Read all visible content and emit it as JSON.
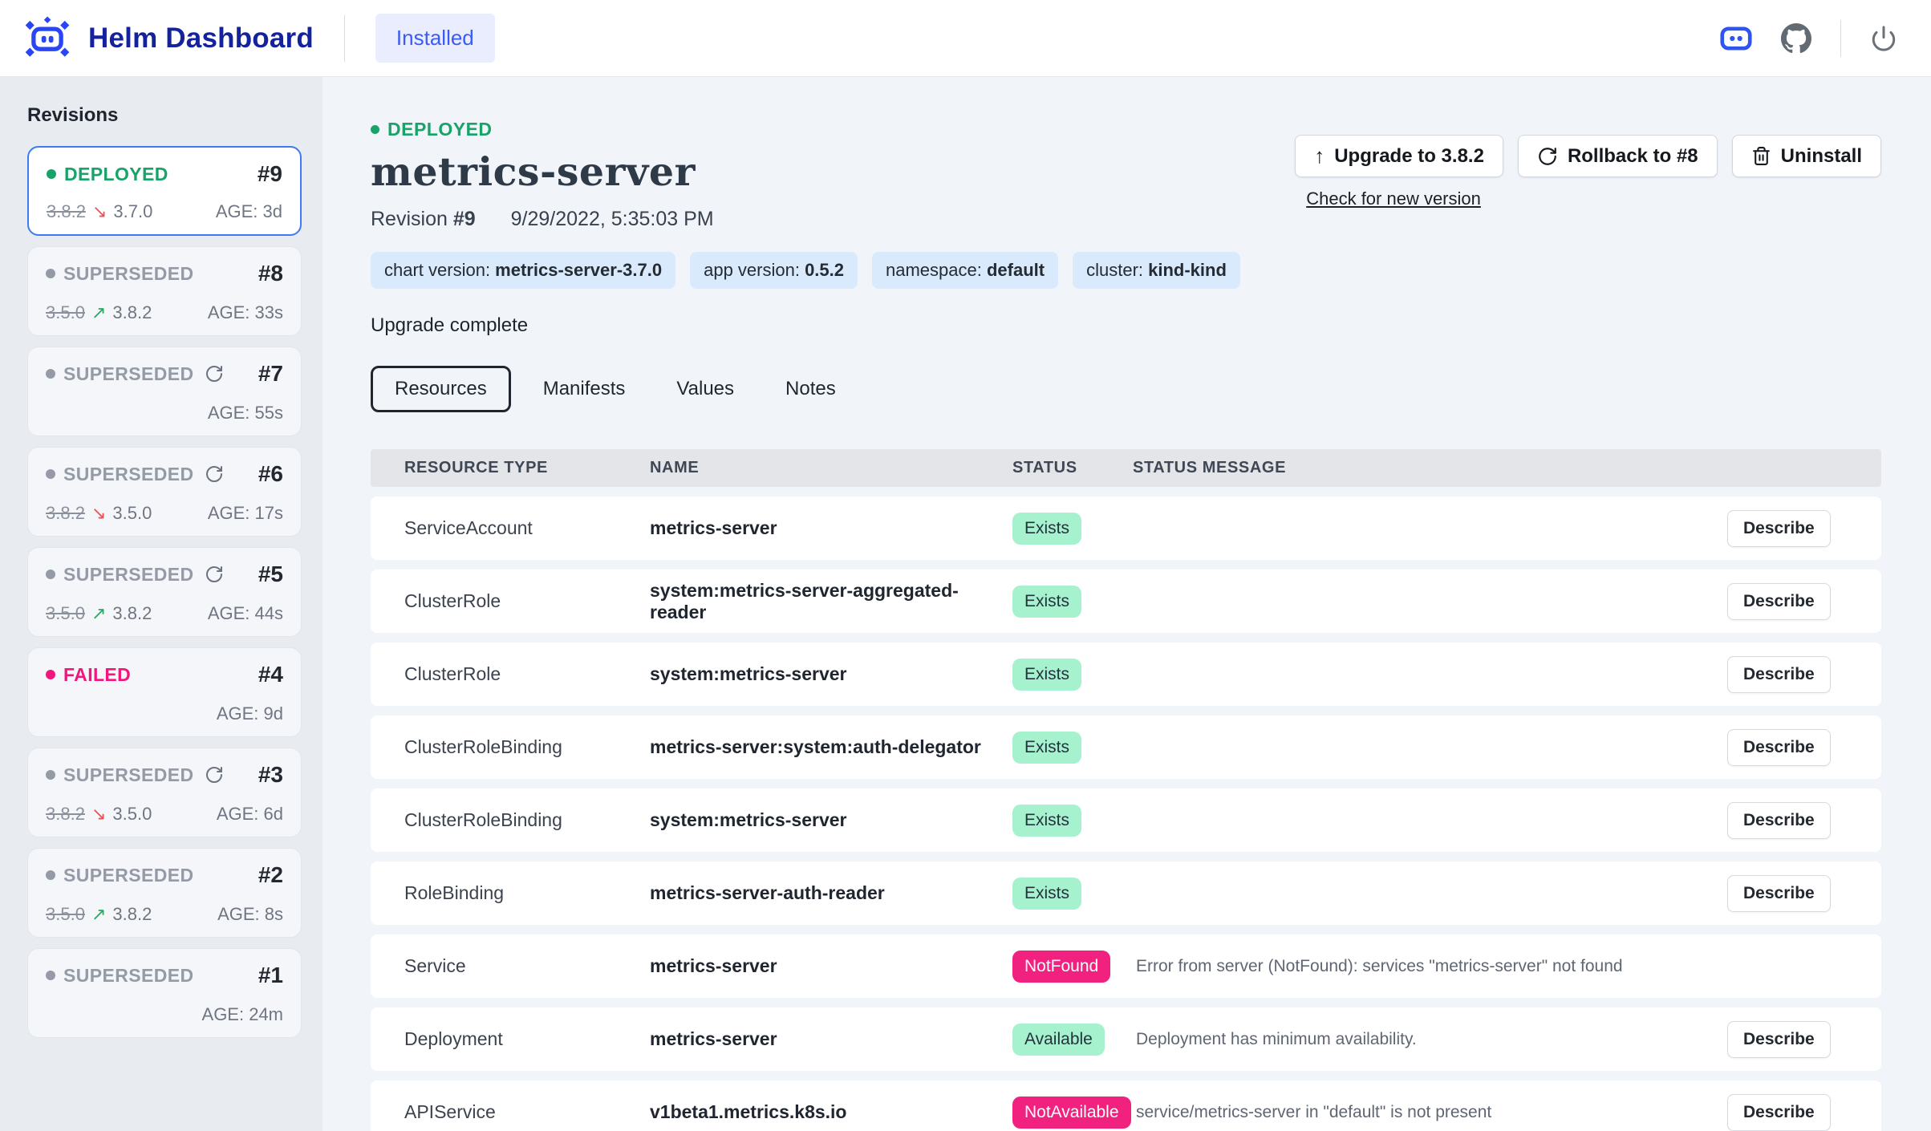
{
  "colors": {
    "accent_blue": "#2946f5",
    "title_navy": "#14239d",
    "installed_blue": "#3b5bf6",
    "green": "#18a368",
    "gray_status": "#949aa6",
    "failed_pink": "#f0167e",
    "badge_blue_bg": "#d8eafc",
    "ok_badge_bg": "#a6f2cf",
    "err_badge_bg": "#f0217f",
    "selected_border": "#3d7bf5"
  },
  "header": {
    "app_title": "Helm Dashboard",
    "installed_label": "Installed",
    "icons": [
      "robot-logo-icon",
      "robot-chip-icon",
      "github-icon",
      "power-icon"
    ]
  },
  "sidebar": {
    "title": "Revisions",
    "revisions": [
      {
        "number": "#9",
        "status": "DEPLOYED",
        "kind": "deployed",
        "selected": true,
        "reload": false,
        "old": "3.8.2",
        "new": "3.7.0",
        "direction": "down",
        "age": "AGE: 3d"
      },
      {
        "number": "#8",
        "status": "SUPERSEDED",
        "kind": "superseded",
        "selected": false,
        "reload": false,
        "old": "3.5.0",
        "new": "3.8.2",
        "direction": "up",
        "age": "AGE: 33s"
      },
      {
        "number": "#7",
        "status": "SUPERSEDED",
        "kind": "superseded",
        "selected": false,
        "reload": true,
        "old": "",
        "new": "",
        "direction": "",
        "age": "AGE: 55s"
      },
      {
        "number": "#6",
        "status": "SUPERSEDED",
        "kind": "superseded",
        "selected": false,
        "reload": true,
        "old": "3.8.2",
        "new": "3.5.0",
        "direction": "down",
        "age": "AGE: 17s"
      },
      {
        "number": "#5",
        "status": "SUPERSEDED",
        "kind": "superseded",
        "selected": false,
        "reload": true,
        "old": "3.5.0",
        "new": "3.8.2",
        "direction": "up",
        "age": "AGE: 44s"
      },
      {
        "number": "#4",
        "status": "FAILED",
        "kind": "failed",
        "selected": false,
        "reload": false,
        "old": "",
        "new": "",
        "direction": "",
        "age": "AGE: 9d"
      },
      {
        "number": "#3",
        "status": "SUPERSEDED",
        "kind": "superseded",
        "selected": false,
        "reload": true,
        "old": "3.8.2",
        "new": "3.5.0",
        "direction": "down",
        "age": "AGE: 6d"
      },
      {
        "number": "#2",
        "status": "SUPERSEDED",
        "kind": "superseded",
        "selected": false,
        "reload": false,
        "old": "3.5.0",
        "new": "3.8.2",
        "direction": "up",
        "age": "AGE: 8s"
      },
      {
        "number": "#1",
        "status": "SUPERSEDED",
        "kind": "superseded",
        "selected": false,
        "reload": false,
        "old": "",
        "new": "",
        "direction": "",
        "age": "AGE: 24m"
      }
    ],
    "arrows": {
      "down": "↘",
      "up": "↗"
    }
  },
  "release": {
    "status": "DEPLOYED",
    "name": "metrics-server",
    "revision_label": "Revision",
    "revision_number": "#9",
    "date": "9/29/2022, 5:35:03 PM",
    "badges": [
      {
        "label": "chart version:",
        "value": "metrics-server-3.7.0"
      },
      {
        "label": "app version:",
        "value": "0.5.2"
      },
      {
        "label": "namespace:",
        "value": "default"
      },
      {
        "label": "cluster:",
        "value": "kind-kind"
      }
    ],
    "description": "Upgrade complete"
  },
  "actions": {
    "upgrade_label": "Upgrade to 3.8.2",
    "upgrade_arrow": "↑",
    "rollback_label": "Rollback to #8",
    "uninstall_label": "Uninstall",
    "check_link": "Check for new version"
  },
  "tabs": [
    {
      "label": "Resources",
      "active": true
    },
    {
      "label": "Manifests",
      "active": false
    },
    {
      "label": "Values",
      "active": false
    },
    {
      "label": "Notes",
      "active": false
    }
  ],
  "table": {
    "columns": [
      "RESOURCE TYPE",
      "NAME",
      "STATUS",
      "STATUS MESSAGE"
    ],
    "describe_label": "Describe",
    "rows": [
      {
        "type": "ServiceAccount",
        "name": "metrics-server",
        "status": "Exists",
        "status_kind": "ok",
        "message": "",
        "describe": true
      },
      {
        "type": "ClusterRole",
        "name": "system:metrics-server-aggregated-reader",
        "status": "Exists",
        "status_kind": "ok",
        "message": "",
        "describe": true
      },
      {
        "type": "ClusterRole",
        "name": "system:metrics-server",
        "status": "Exists",
        "status_kind": "ok",
        "message": "",
        "describe": true
      },
      {
        "type": "ClusterRoleBinding",
        "name": "metrics-server:system:auth-delegator",
        "status": "Exists",
        "status_kind": "ok",
        "message": "",
        "describe": true
      },
      {
        "type": "ClusterRoleBinding",
        "name": "system:metrics-server",
        "status": "Exists",
        "status_kind": "ok",
        "message": "",
        "describe": true
      },
      {
        "type": "RoleBinding",
        "name": "metrics-server-auth-reader",
        "status": "Exists",
        "status_kind": "ok",
        "message": "",
        "describe": true
      },
      {
        "type": "Service",
        "name": "metrics-server",
        "status": "NotFound",
        "status_kind": "err",
        "message": "Error from server (NotFound): services \"metrics-server\" not found",
        "describe": false
      },
      {
        "type": "Deployment",
        "name": "metrics-server",
        "status": "Available",
        "status_kind": "ok",
        "message": "Deployment has minimum availability.",
        "describe": true
      },
      {
        "type": "APIService",
        "name": "v1beta1.metrics.k8s.io",
        "status": "NotAvailable",
        "status_kind": "err",
        "message": "service/metrics-server in \"default\" is not present",
        "describe": true
      }
    ]
  }
}
